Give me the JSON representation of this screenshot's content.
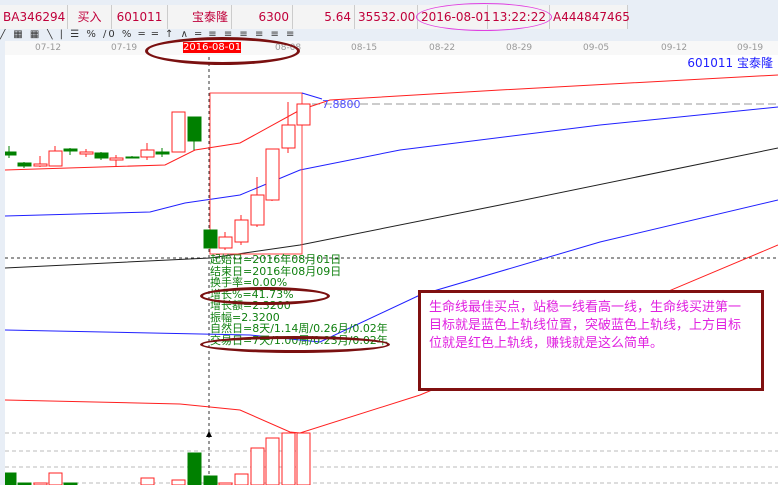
{
  "order": {
    "id": "BA346294",
    "side": "买入",
    "code": "601011",
    "name": "宝泰隆",
    "quantity": "6300",
    "price": "5.64",
    "amount": "35532.00",
    "date": "2016-08-01",
    "time": "13:22:22",
    "account": "A444847465"
  },
  "toolbar": {
    "icons": [
      "draw-icon",
      "chart-icon",
      "chart-icon-2",
      "line-icon",
      "gain-icon",
      "percent-icon",
      "ratio-icon",
      "percent-line-icon",
      "gold-icon",
      "level-icon",
      "arrow-icon",
      "angle-icon",
      "channel-icon",
      "fan-icon-1",
      "fan-icon-2",
      "fan-icon-3",
      "fan-icon-4",
      "fan-icon-5",
      "fan-icon-6"
    ],
    "glyphs": "╱ ▦ ▦ ╲ | ☰ %  /0 %  ═ ═ ↑ ∧ ═ ≡ ≡ ≡ ≡ ≡ ≡"
  },
  "axis": {
    "dates": [
      "07-12",
      "07-19",
      "2016-08-01",
      "08-08",
      "08-15",
      "08-22",
      "08-29",
      "09-05",
      "09-12",
      "09-19"
    ],
    "selected": "2016-08-01"
  },
  "chart": {
    "title": "601011  宝泰隆",
    "price_label": "7.8800",
    "colors": {
      "up": "#ff2020",
      "down": "#008000",
      "upper": "#ff2020",
      "mid": "#2020ff",
      "ma": "#202020"
    }
  },
  "stats": [
    "起始日=2016年08月01日",
    "结束日=2016年08月09日",
    "换手率=0.00%",
    "增长%=41.73%",
    "增长额=2.3200",
    "振幅=2.3200",
    "自然日=8天/1.14周/0.26月/0.02年",
    "交易日=7天/1.00周/0.23月/0.02年"
  ],
  "note": "生命线最佳买点，站稳一线看高一线，生命线买进第一目标就是蓝色上轨线位置，突破蓝色上轨线，上方目标位就是红色上轨线，赚钱就是这么简单。"
}
